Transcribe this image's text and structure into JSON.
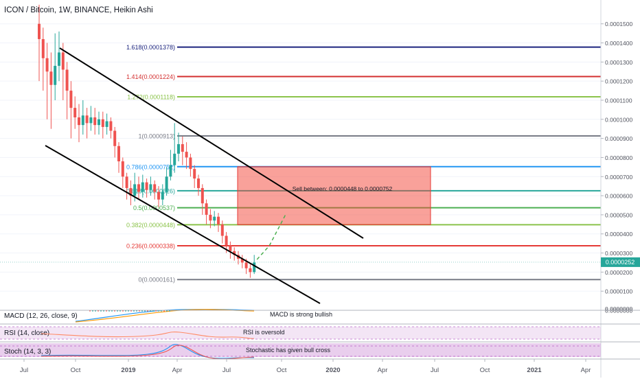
{
  "header": {
    "title": "ICON / Bitcoin, 1W, BINANCE, Heikin Ashi"
  },
  "chart_data": [
    {
      "type": "candlestick",
      "title": "ICON / Bitcoin, 1W, BINANCE, Heikin Ashi",
      "y_axis_ticks": [
        "0.0001500",
        "0.0001400",
        "0.0001300",
        "0.0001200",
        "0.0001100",
        "0.0001000",
        "0.0000900",
        "0.0000800",
        "0.0000700",
        "0.0000600",
        "0.0000500",
        "0.0000400",
        "0.0000300",
        "0.0000200",
        "0.0000100",
        "0.0000000"
      ],
      "x_axis_ticks": [
        "Jul",
        "Oct",
        "2019",
        "Apr",
        "Jul",
        "Oct",
        "2020",
        "Apr",
        "Jul",
        "Oct",
        "2021",
        "Apr"
      ],
      "last_price": "0.0000252",
      "ylim": [
        0,
        0.000156
      ],
      "candles": [
        {
          "o": 0.00015,
          "c": 0.000142,
          "h": 0.00016,
          "l": 0.00012
        },
        {
          "o": 0.000142,
          "c": 0.000132,
          "h": 0.000148,
          "l": 0.000115
        },
        {
          "o": 0.000132,
          "c": 0.000125,
          "h": 0.00014,
          "l": 0.0001
        },
        {
          "o": 0.000125,
          "c": 0.000118,
          "h": 0.000135,
          "l": 9.5e-05
        },
        {
          "o": 0.000118,
          "c": 0.000128,
          "h": 0.000145,
          "l": 0.00011
        },
        {
          "o": 0.000128,
          "c": 0.000135,
          "h": 0.000146,
          "l": 0.00012
        },
        {
          "o": 0.000135,
          "c": 0.000126,
          "h": 0.00014,
          "l": 0.00011
        },
        {
          "o": 0.000126,
          "c": 0.000115,
          "h": 0.00013,
          "l": 0.0001
        },
        {
          "o": 0.000115,
          "c": 0.000106,
          "h": 0.00012,
          "l": 9e-05
        },
        {
          "o": 0.000106,
          "c": 0.000101,
          "h": 0.000112,
          "l": 9.5e-05
        },
        {
          "o": 0.000101,
          "c": 9.7e-05,
          "h": 0.000108,
          "l": 8.8e-05
        },
        {
          "o": 9.7e-05,
          "c": 0.000102,
          "h": 0.00011,
          "l": 9.2e-05
        },
        {
          "o": 0.000102,
          "c": 9.8e-05,
          "h": 0.000106,
          "l": 9e-05
        },
        {
          "o": 9.8e-05,
          "c": 0.000101,
          "h": 0.000107,
          "l": 9.4e-05
        },
        {
          "o": 0.000101,
          "c": 9.7e-05,
          "h": 0.000106,
          "l": 9.2e-05
        },
        {
          "o": 9.7e-05,
          "c": 0.0001,
          "h": 0.000104,
          "l": 9.2e-05
        },
        {
          "o": 0.0001,
          "c": 9.6e-05,
          "h": 0.000104,
          "l": 9e-05
        },
        {
          "o": 9.6e-05,
          "c": 9.9e-05,
          "h": 0.000103,
          "l": 9.2e-05
        },
        {
          "o": 9.9e-05,
          "c": 9.4e-05,
          "h": 0.000101,
          "l": 9e-05
        },
        {
          "o": 9.4e-05,
          "c": 8.6e-05,
          "h": 9.6e-05,
          "l": 8e-05
        },
        {
          "o": 8.6e-05,
          "c": 7.8e-05,
          "h": 8.8e-05,
          "l": 7.2e-05
        },
        {
          "o": 7.8e-05,
          "c": 7e-05,
          "h": 8e-05,
          "l": 6.4e-05
        },
        {
          "o": 7e-05,
          "c": 6.4e-05,
          "h": 7.2e-05,
          "l": 5.8e-05
        },
        {
          "o": 6.4e-05,
          "c": 6e-05,
          "h": 6.8e-05,
          "l": 5.5e-05
        },
        {
          "o": 6e-05,
          "c": 6.6e-05,
          "h": 7.2e-05,
          "l": 5.7e-05
        },
        {
          "o": 6.6e-05,
          "c": 6.2e-05,
          "h": 7e-05,
          "l": 5.8e-05
        },
        {
          "o": 6.2e-05,
          "c": 6.7e-05,
          "h": 7.1e-05,
          "l": 5.9e-05
        },
        {
          "o": 6.7e-05,
          "c": 6.3e-05,
          "h": 6.9e-05,
          "l": 5.9e-05
        },
        {
          "o": 6.3e-05,
          "c": 6.6e-05,
          "h": 7e-05,
          "l": 6e-05
        },
        {
          "o": 6.6e-05,
          "c": 6.2e-05,
          "h": 6.8e-05,
          "l": 5.8e-05
        },
        {
          "o": 6.2e-05,
          "c": 5.8e-05,
          "h": 6.5e-05,
          "l": 5.4e-05
        },
        {
          "o": 5.8e-05,
          "c": 6.2e-05,
          "h": 6.6e-05,
          "l": 5.5e-05
        },
        {
          "o": 6.2e-05,
          "c": 7e-05,
          "h": 7.5e-05,
          "l": 6e-05
        },
        {
          "o": 7e-05,
          "c": 7.6e-05,
          "h": 8.4e-05,
          "l": 6.8e-05
        },
        {
          "o": 7.6e-05,
          "c": 8.2e-05,
          "h": 9.8e-05,
          "l": 7.2e-05
        },
        {
          "o": 8.2e-05,
          "c": 8.7e-05,
          "h": 9.3e-05,
          "l": 7.8e-05
        },
        {
          "o": 8.7e-05,
          "c": 8.3e-05,
          "h": 9.1e-05,
          "l": 7.6e-05
        },
        {
          "o": 8.3e-05,
          "c": 8e-05,
          "h": 8.8e-05,
          "l": 7.4e-05
        },
        {
          "o": 8e-05,
          "c": 7.4e-05,
          "h": 8.2e-05,
          "l": 7e-05
        },
        {
          "o": 7.4e-05,
          "c": 6.9e-05,
          "h": 7.6e-05,
          "l": 6.4e-05
        },
        {
          "o": 6.9e-05,
          "c": 6.4e-05,
          "h": 7.1e-05,
          "l": 6e-05
        },
        {
          "o": 6.4e-05,
          "c": 5.6e-05,
          "h": 6.6e-05,
          "l": 5e-05
        },
        {
          "o": 5.6e-05,
          "c": 5e-05,
          "h": 5.8e-05,
          "l": 4.5e-05
        },
        {
          "o": 5e-05,
          "c": 4.7e-05,
          "h": 5.3e-05,
          "l": 4.3e-05
        },
        {
          "o": 4.7e-05,
          "c": 4.9e-05,
          "h": 5.2e-05,
          "l": 4.4e-05
        },
        {
          "o": 4.9e-05,
          "c": 4.5e-05,
          "h": 5.1e-05,
          "l": 4.1e-05
        },
        {
          "o": 4.5e-05,
          "c": 3.9e-05,
          "h": 4.7e-05,
          "l": 3.5e-05
        },
        {
          "o": 3.9e-05,
          "c": 3.4e-05,
          "h": 4.1e-05,
          "l": 3e-05
        },
        {
          "o": 3.4e-05,
          "c": 3.1e-05,
          "h": 3.6e-05,
          "l": 2.7e-05
        },
        {
          "o": 3.1e-05,
          "c": 2.9e-05,
          "h": 3.3e-05,
          "l": 2.6e-05
        },
        {
          "o": 2.9e-05,
          "c": 2.7e-05,
          "h": 3.1e-05,
          "l": 2.4e-05
        },
        {
          "o": 2.7e-05,
          "c": 2.5e-05,
          "h": 2.9e-05,
          "l": 2.2e-05
        },
        {
          "o": 2.5e-05,
          "c": 2.2e-05,
          "h": 2.7e-05,
          "l": 1.9e-05
        },
        {
          "o": 2.2e-05,
          "c": 2e-05,
          "h": 2.4e-05,
          "l": 1.7e-05
        },
        {
          "o": 2e-05,
          "c": 2.5e-05,
          "h": 2.9e-05,
          "l": 1.9e-05
        }
      ],
      "fib_levels": [
        {
          "label": "1.618(0.0001378)",
          "value": 0.0001378,
          "color": "#1a237e"
        },
        {
          "label": "1.414(0.0001224)",
          "value": 0.0001224,
          "color": "#d32f2f"
        },
        {
          "label": "1.272(0.0001118)",
          "value": 0.0001118,
          "color": "#8bc34a"
        },
        {
          "label": "1(0.0000913)",
          "value": 9.13e-05,
          "color": "#787b86"
        },
        {
          "label": "0.786(0.0000752)",
          "value": 7.52e-05,
          "color": "#2196f3"
        },
        {
          "label": "0.618(0.0000626)",
          "value": 6.26e-05,
          "color": "#26a69a"
        },
        {
          "label": "0.5(0.0000537)",
          "value": 5.37e-05,
          "color": "#4caf50"
        },
        {
          "label": "0.382(0.0000448)",
          "value": 4.48e-05,
          "color": "#8bc34a"
        },
        {
          "label": "0.236(0.0000338)",
          "value": 3.38e-05,
          "color": "#e53935"
        },
        {
          "label": "0(0.0000161)",
          "value": 1.61e-05,
          "color": "#787b86"
        }
      ],
      "sell_zone": {
        "label": "Sell between: 0.0000448 to 0.0000752",
        "low": 4.48e-05,
        "high": 7.52e-05,
        "color": "#f44336"
      },
      "colors": {
        "up": "#26a69a",
        "down": "#ef5350",
        "channel": "#000000",
        "projection": "#4caf50"
      }
    },
    {
      "type": "line",
      "indicator": "macd",
      "label": "MACD (12, 26, close, 9)",
      "annotation": "MACD is strong bullish",
      "colors": {
        "macd": "#2196f3",
        "signal": "#ff9800",
        "hist_up": "#26a69a",
        "hist_down": "#ef5350"
      }
    },
    {
      "type": "line",
      "indicator": "rsi",
      "label": "RSI (14, close)",
      "annotation": "RSI is oversold",
      "colors": {
        "line": "#ff8a65",
        "band": "#e1bee7"
      }
    },
    {
      "type": "line",
      "indicator": "stoch",
      "label": "Stoch (14, 3, 3)",
      "annotation": "Stochastic has given bull cross",
      "colors": {
        "k": "#2196f3",
        "d": "#ef5350",
        "band": "#ce93d8"
      }
    }
  ]
}
